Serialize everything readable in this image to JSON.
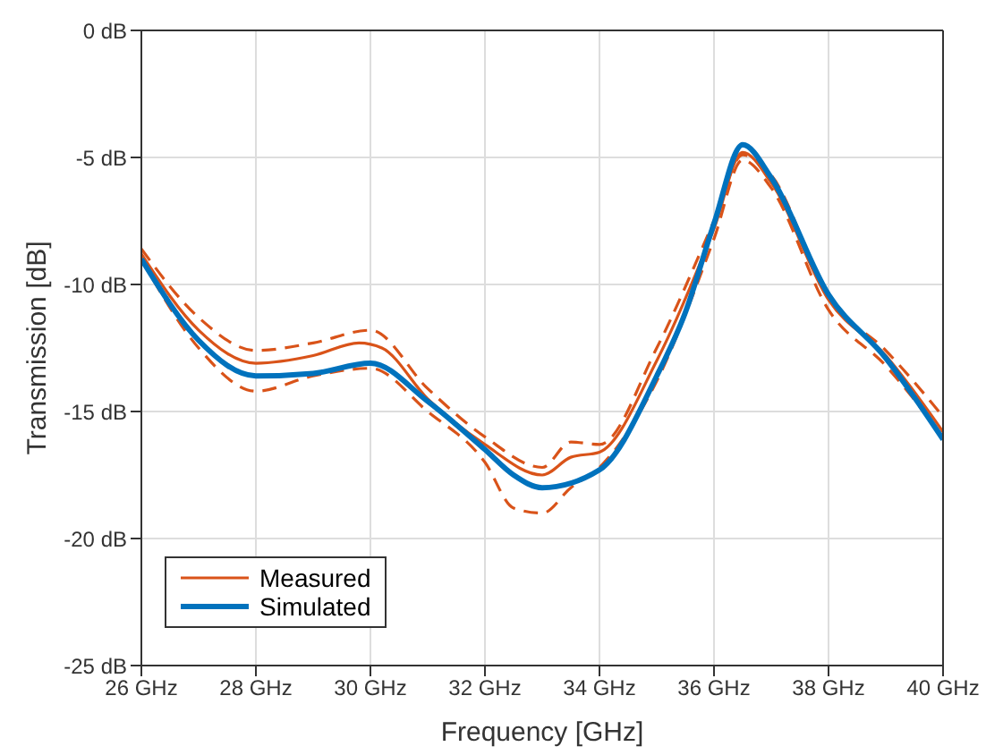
{
  "chart_data": {
    "type": "line",
    "xlabel": "Frequency [GHz]",
    "ylabel": "Transmission [dB]",
    "xlim": [
      26,
      40
    ],
    "xticks": [
      {
        "value": 26,
        "label": "26 GHz"
      },
      {
        "value": 28,
        "label": "28 GHz"
      },
      {
        "value": 30,
        "label": "30 GHz"
      },
      {
        "value": 32,
        "label": "32 GHz"
      },
      {
        "value": 34,
        "label": "34 GHz"
      },
      {
        "value": 36,
        "label": "36 GHz"
      },
      {
        "value": 38,
        "label": "38 GHz"
      },
      {
        "value": 40,
        "label": "40 GHz"
      }
    ],
    "ylim": [
      -25,
      0
    ],
    "yticks": [
      {
        "value": -25,
        "label": "-25 dB"
      },
      {
        "value": -20,
        "label": "-20 dB"
      },
      {
        "value": -15,
        "label": "-15 dB"
      },
      {
        "value": -10,
        "label": "-10 dB"
      },
      {
        "value": -5,
        "label": "-5 dB"
      },
      {
        "value": 0,
        "label": "0 dB"
      }
    ],
    "grid": true,
    "legend": "bottom left",
    "marker": "none",
    "series": [
      {
        "color": "#d95319",
        "line_style": "dashed",
        "x": [
          26,
          27,
          28,
          29,
          30,
          31,
          32,
          33,
          33.5,
          34,
          35,
          36,
          36.5,
          37,
          38,
          39,
          40
        ],
        "values": [
          -8.6,
          -11.3,
          -12.6,
          -12.3,
          -11.8,
          -14.1,
          -16.0,
          -17.2,
          -16.2,
          -16.3,
          -12.5,
          -7.5,
          -4.9,
          -5.7,
          -10.5,
          -12.6,
          -15.2
        ]
      },
      {
        "color": "#d95319",
        "line_style": "dashed",
        "x": [
          26,
          27,
          28,
          29,
          30,
          31,
          32,
          32.5,
          33,
          33.5,
          34,
          35,
          36,
          36.5,
          37,
          38,
          39,
          40
        ],
        "values": [
          -9.0,
          -12.5,
          -14.2,
          -13.6,
          -13.3,
          -15.0,
          -17.0,
          -18.8,
          -19.0,
          -18.0,
          -17.2,
          -13.8,
          -8.2,
          -5.1,
          -6.2,
          -11.0,
          -13.2,
          -16.0
        ]
      },
      {
        "name": "Measured",
        "color": "#d95319",
        "line_style": "solid",
        "x": [
          26,
          27,
          28,
          29,
          29.8,
          30.2,
          31,
          32,
          33,
          33.5,
          34,
          35,
          36,
          36.5,
          37,
          38,
          39,
          40
        ],
        "values": [
          -8.8,
          -11.8,
          -13.1,
          -12.8,
          -12.3,
          -12.5,
          -14.5,
          -16.3,
          -17.5,
          -16.8,
          -16.6,
          -13.0,
          -7.8,
          -4.8,
          -6.0,
          -10.6,
          -12.8,
          -15.8
        ]
      },
      {
        "name": "Simulated",
        "color": "#0072bd",
        "line_style": "solid",
        "x": [
          26,
          27,
          28,
          29,
          30,
          31,
          32,
          32.5,
          33,
          34,
          35,
          35.5,
          36,
          36.5,
          37,
          38,
          39,
          40
        ],
        "values": [
          -9.0,
          -12.2,
          -13.6,
          -13.5,
          -13.1,
          -14.6,
          -16.5,
          -17.5,
          -18.0,
          -17.3,
          -13.6,
          -11.1,
          -7.6,
          -4.5,
          -5.8,
          -10.4,
          -12.9,
          -16.1
        ]
      }
    ]
  }
}
